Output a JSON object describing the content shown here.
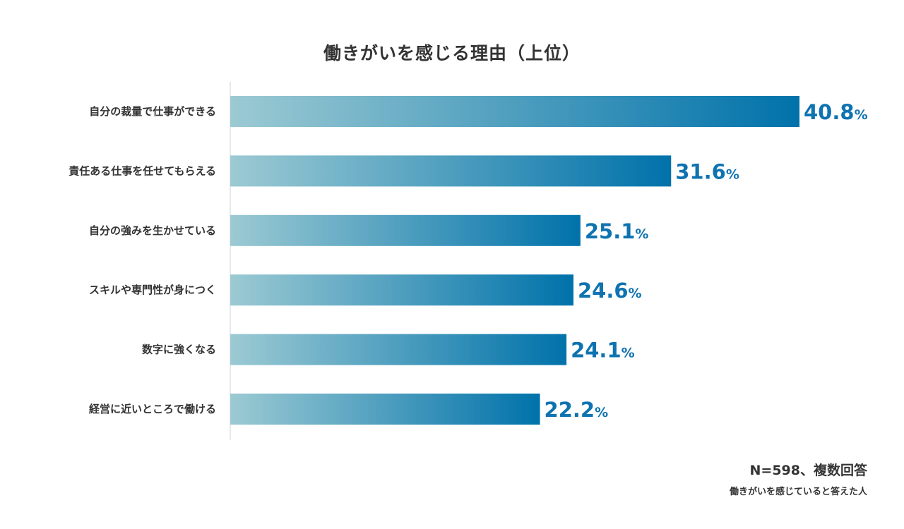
{
  "chart_data": {
    "type": "bar",
    "orientation": "horizontal",
    "title": "働きがいを感じる理由（上位）",
    "categories": [
      "自分の裁量で仕事ができる",
      "責任ある仕事を任せてもらえる",
      "自分の強みを生かせている",
      "スキルや専門性が身につく",
      "数字に強くなる",
      "経営に近いところで働ける"
    ],
    "values": [
      40.8,
      31.6,
      25.1,
      24.6,
      24.1,
      22.2
    ],
    "value_suffix": "%",
    "xlim": [
      0,
      40.8
    ],
    "legend": "none",
    "grid": false
  },
  "colors": {
    "bar_start": "#9ccad3",
    "bar_end": "#0072aa",
    "value_text": "#0e73b0",
    "axis": "#c8d3d8"
  },
  "notes": {
    "main": "N=598、複数回答",
    "sub": "働きがいを感じていると答えた人"
  }
}
